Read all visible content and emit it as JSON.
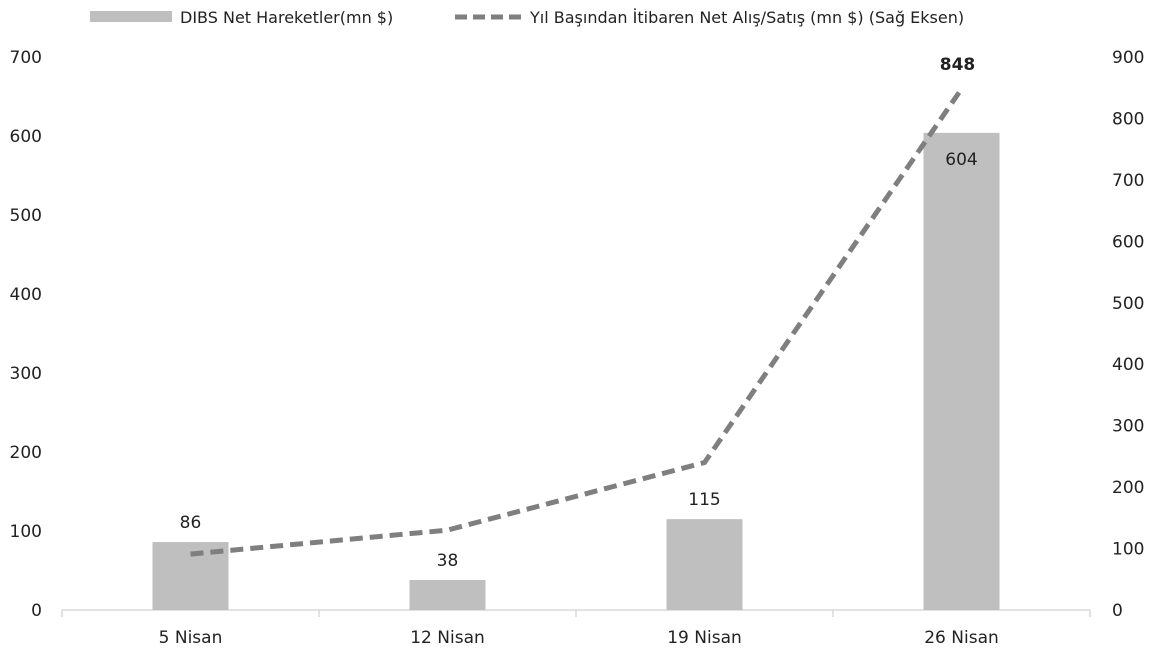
{
  "chart_data": {
    "type": "bar",
    "categories": [
      "5 Nisan",
      "12 Nisan",
      "19 Nisan",
      "26 Nisan"
    ],
    "series": [
      {
        "name": "DIBS Net Hareketler(mn $)",
        "type": "bar",
        "axis": "left",
        "color": "#bfbfbf",
        "values": [
          86,
          38,
          115,
          604
        ],
        "labels": [
          "86",
          "38",
          "115",
          "604"
        ]
      },
      {
        "name": "Yıl Başından İtibaren Net Alış/Satış (mn $) (Sağ Eksen)",
        "type": "line",
        "style": "dashed",
        "axis": "right",
        "color": "#7f7f7f",
        "values": [
          91,
          130,
          240,
          848
        ],
        "labels": [
          "",
          "",
          "",
          "848"
        ]
      }
    ],
    "left_axis": {
      "ylim": [
        0,
        700
      ],
      "ticks": [
        "0",
        "100",
        "200",
        "300",
        "400",
        "500",
        "600",
        "700"
      ]
    },
    "right_axis": {
      "ylim": [
        0,
        900
      ],
      "ticks": [
        "0",
        "100",
        "200",
        "300",
        "400",
        "500",
        "600",
        "700",
        "800",
        "900"
      ]
    },
    "grid": false,
    "legend": "top"
  }
}
